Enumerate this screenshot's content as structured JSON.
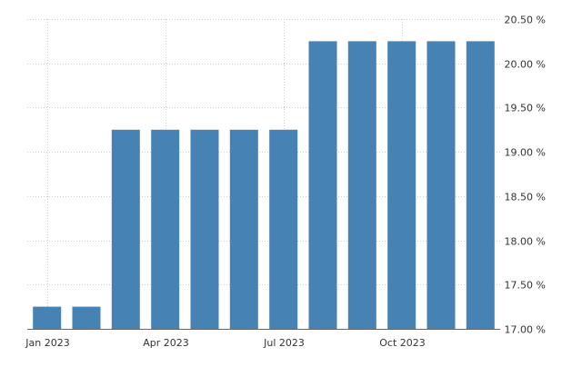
{
  "chart_data": {
    "type": "bar",
    "title": "",
    "xlabel": "",
    "ylabel": "",
    "categories": [
      "2023-01",
      "2023-02",
      "2023-03",
      "2023-04",
      "2023-05",
      "2023-06",
      "2023-07",
      "2023-08",
      "2023-09",
      "2023-10",
      "2023-11",
      "2023-12"
    ],
    "values": [
      17.25,
      17.25,
      19.25,
      19.25,
      19.25,
      19.25,
      19.25,
      20.25,
      20.25,
      20.25,
      20.25,
      20.25
    ],
    "ylim": [
      17.0,
      20.5
    ],
    "y_ticks": [
      "17.00 %",
      "17.50 %",
      "18.00 %",
      "18.50 %",
      "19.00 %",
      "19.50 %",
      "20.00 %",
      "20.50 %"
    ],
    "y_tick_values": [
      17.0,
      17.5,
      18.0,
      18.5,
      19.0,
      19.5,
      20.0,
      20.5
    ],
    "x_tick_labels": [
      {
        "category": "2023-01",
        "label": "Jan 2023"
      },
      {
        "category": "2023-04",
        "label": "Apr 2023"
      },
      {
        "category": "2023-07",
        "label": "Jul 2023"
      },
      {
        "category": "2023-10",
        "label": "Oct 2023"
      }
    ],
    "y_axis_position": "right",
    "grid": true,
    "legend": "none",
    "bar_color": "#4682b4"
  }
}
